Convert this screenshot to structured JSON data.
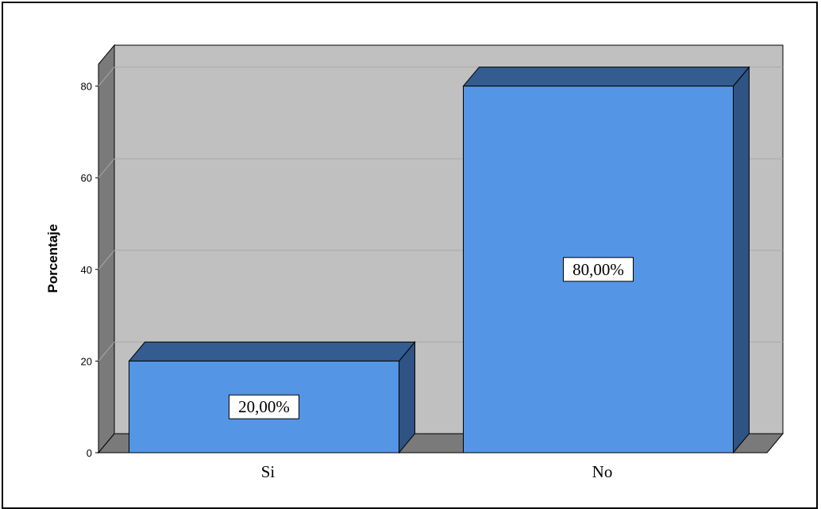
{
  "chart_data": {
    "type": "bar",
    "categories": [
      "Si",
      "No"
    ],
    "values": [
      20,
      80
    ],
    "data_labels": [
      "20,00%",
      "80,00%"
    ],
    "xlabel": "",
    "ylabel": "Porcentaje",
    "ylim": [
      0,
      85
    ],
    "yticks": [
      0,
      20,
      40,
      60,
      80
    ],
    "ytick_labels": [
      "0",
      "20",
      "40",
      "60",
      "80"
    ],
    "grid": true,
    "style": "3d-bar",
    "colors": {
      "bar_front": "#5595e5",
      "bar_top": "#345c91",
      "bar_side": "#2e5384",
      "back_wall": "#c0c0c0",
      "side_wall": "#7a7a7a",
      "floor": "#7a7a7a",
      "gridline": "#a9a9a9"
    }
  }
}
